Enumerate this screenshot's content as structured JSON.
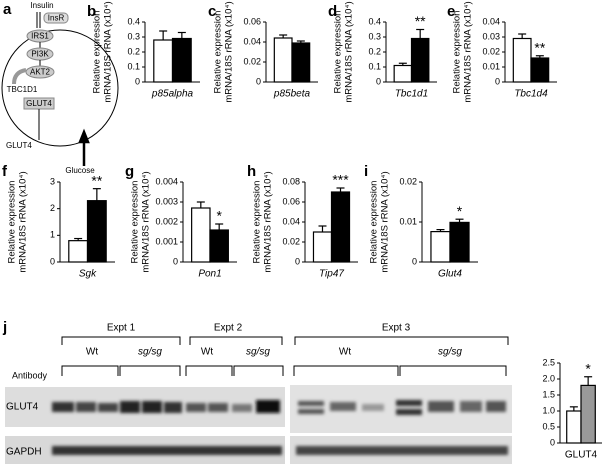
{
  "diagram": {
    "panel": "a",
    "labels": [
      "Insulin",
      "InsR",
      "IRS1",
      "PI3K",
      "AKT2",
      "TBC1D1",
      "GLUT4",
      "GLUT4",
      "Glucose"
    ]
  },
  "chart_data": [
    {
      "type": "bar",
      "panel": "b",
      "ylabel": [
        "Relative expression",
        "mRNA/18S rRNA (x10⁴)"
      ],
      "xlabel": "p85alpha",
      "values": [
        0.28,
        0.29
      ],
      "errors": [
        0.06,
        0.04
      ],
      "colors": [
        "#ffffff",
        "#000000"
      ],
      "ylim": [
        0,
        0.4
      ],
      "yticks": [
        0,
        0.1,
        0.2,
        0.3,
        0.4
      ]
    },
    {
      "type": "bar",
      "panel": "c",
      "ylabel": [
        "Relative expression",
        "mRNA/18S rRNA (x10⁴)"
      ],
      "xlabel": "p85beta",
      "values": [
        0.044,
        0.039
      ],
      "errors": [
        0.003,
        0.002
      ],
      "colors": [
        "#ffffff",
        "#000000"
      ],
      "ylim": [
        0,
        0.06
      ],
      "yticks": [
        0,
        0.02,
        0.04,
        0.06
      ]
    },
    {
      "type": "bar",
      "panel": "d",
      "ylabel": [
        "Relative expression",
        "mRNA/18S rRNA (x10⁴)"
      ],
      "xlabel": "Tbc1d1",
      "values": [
        0.11,
        0.29
      ],
      "errors": [
        0.015,
        0.06
      ],
      "colors": [
        "#ffffff",
        "#000000"
      ],
      "ylim": [
        0,
        0.4
      ],
      "yticks": [
        0,
        0.1,
        0.2,
        0.3,
        0.4
      ],
      "annotation": "**"
    },
    {
      "type": "bar",
      "panel": "e",
      "ylabel": [
        "Relative expression",
        "mRNA/18S rRNA (x10⁴)"
      ],
      "xlabel": "Tbc1d4",
      "values": [
        0.029,
        0.016
      ],
      "errors": [
        0.003,
        0.0015
      ],
      "colors": [
        "#ffffff",
        "#000000"
      ],
      "ylim": [
        0,
        0.04
      ],
      "yticks": [
        0,
        0.01,
        0.02,
        0.03,
        0.04
      ],
      "annotation": "**"
    },
    {
      "type": "bar",
      "panel": "f",
      "ylabel": [
        "Relative expression",
        "mRNA/18S rRNA (x10⁴)"
      ],
      "xlabel": "Sgk",
      "values": [
        0.8,
        2.3
      ],
      "errors": [
        0.08,
        0.45
      ],
      "colors": [
        "#ffffff",
        "#000000"
      ],
      "ylim": [
        0,
        3
      ],
      "yticks": [
        0,
        1,
        2,
        3
      ],
      "annotation": "**"
    },
    {
      "type": "bar",
      "panel": "g",
      "ylabel": [
        "Relative expression",
        "mRNA/18S rRNA (x10⁴)"
      ],
      "xlabel": "Pon1",
      "values": [
        0.0027,
        0.0016
      ],
      "errors": [
        0.0003,
        0.0003
      ],
      "colors": [
        "#ffffff",
        "#000000"
      ],
      "ylim": [
        0,
        0.004
      ],
      "yticks": [
        0,
        0.001,
        0.002,
        0.003,
        0.004
      ],
      "annotation": "*"
    },
    {
      "type": "bar",
      "panel": "h",
      "ylabel": [
        "Relative expression",
        "mRNA/18S rRNA (x10⁴)"
      ],
      "xlabel": "Tip47",
      "values": [
        0.03,
        0.07
      ],
      "errors": [
        0.006,
        0.004
      ],
      "colors": [
        "#ffffff",
        "#000000"
      ],
      "ylim": [
        0,
        0.08
      ],
      "yticks": [
        0,
        0.02,
        0.04,
        0.06,
        0.08
      ],
      "annotation": "***"
    },
    {
      "type": "bar",
      "panel": "i",
      "ylabel": [
        "Relative expression",
        "mRNA/18S rRNA (x10⁴)"
      ],
      "xlabel": "Glut4",
      "values": [
        0.0076,
        0.0099
      ],
      "errors": [
        0.0005,
        0.0008
      ],
      "colors": [
        "#ffffff",
        "#000000"
      ],
      "ylim": [
        0,
        0.02
      ],
      "yticks": [
        0,
        0.01,
        0.02
      ],
      "annotation": "*"
    },
    {
      "type": "bar",
      "xlabel": "GLUT4",
      "values": [
        1.0,
        1.8
      ],
      "errors": [
        0.13,
        0.27
      ],
      "colors": [
        "#ffffff",
        "#999999"
      ],
      "ylim": [
        0,
        2.5
      ],
      "yticks": [
        0,
        0.5,
        {
          "value": 1,
          "label": "1.0"
        },
        1.5,
        {
          "value": 2,
          "label": "2.0"
        },
        2.5
      ],
      "annotation": "*"
    }
  ],
  "blot": {
    "panel": "j",
    "experiments": [
      "Expt 1",
      "Expt 2",
      "Expt 3"
    ],
    "groups": [
      "Wt",
      "sg/sg",
      "Wt",
      "sg/sg",
      "Wt",
      "sg/sg"
    ],
    "row_header": "Antibody",
    "rows": [
      "GLUT4",
      "GAPDH"
    ]
  }
}
